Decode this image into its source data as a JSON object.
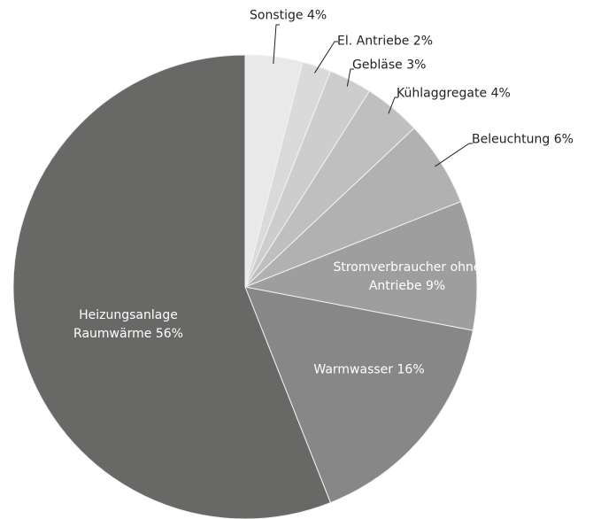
{
  "chart_data": {
    "type": "pie",
    "categories": [
      "Sonstige",
      "El. Antriebe",
      "Gebläse",
      "Kühlaggregate",
      "Beleuchtung",
      "Stromverbraucher ohne Antriebe",
      "Warmwasser",
      "Heizungsanlage Raumwärme"
    ],
    "values": [
      4,
      2,
      3,
      4,
      6,
      9,
      16,
      56
    ],
    "value_labels": [
      "4%",
      "2%",
      "3%",
      "4%",
      "6%",
      "9%",
      "16%",
      "56%"
    ],
    "colors": [
      "#e9e9e9",
      "#dadada",
      "#cdcdcd",
      "#bfbfbf",
      "#b1b1b1",
      "#9e9e9e",
      "#878787",
      "#686866"
    ]
  }
}
